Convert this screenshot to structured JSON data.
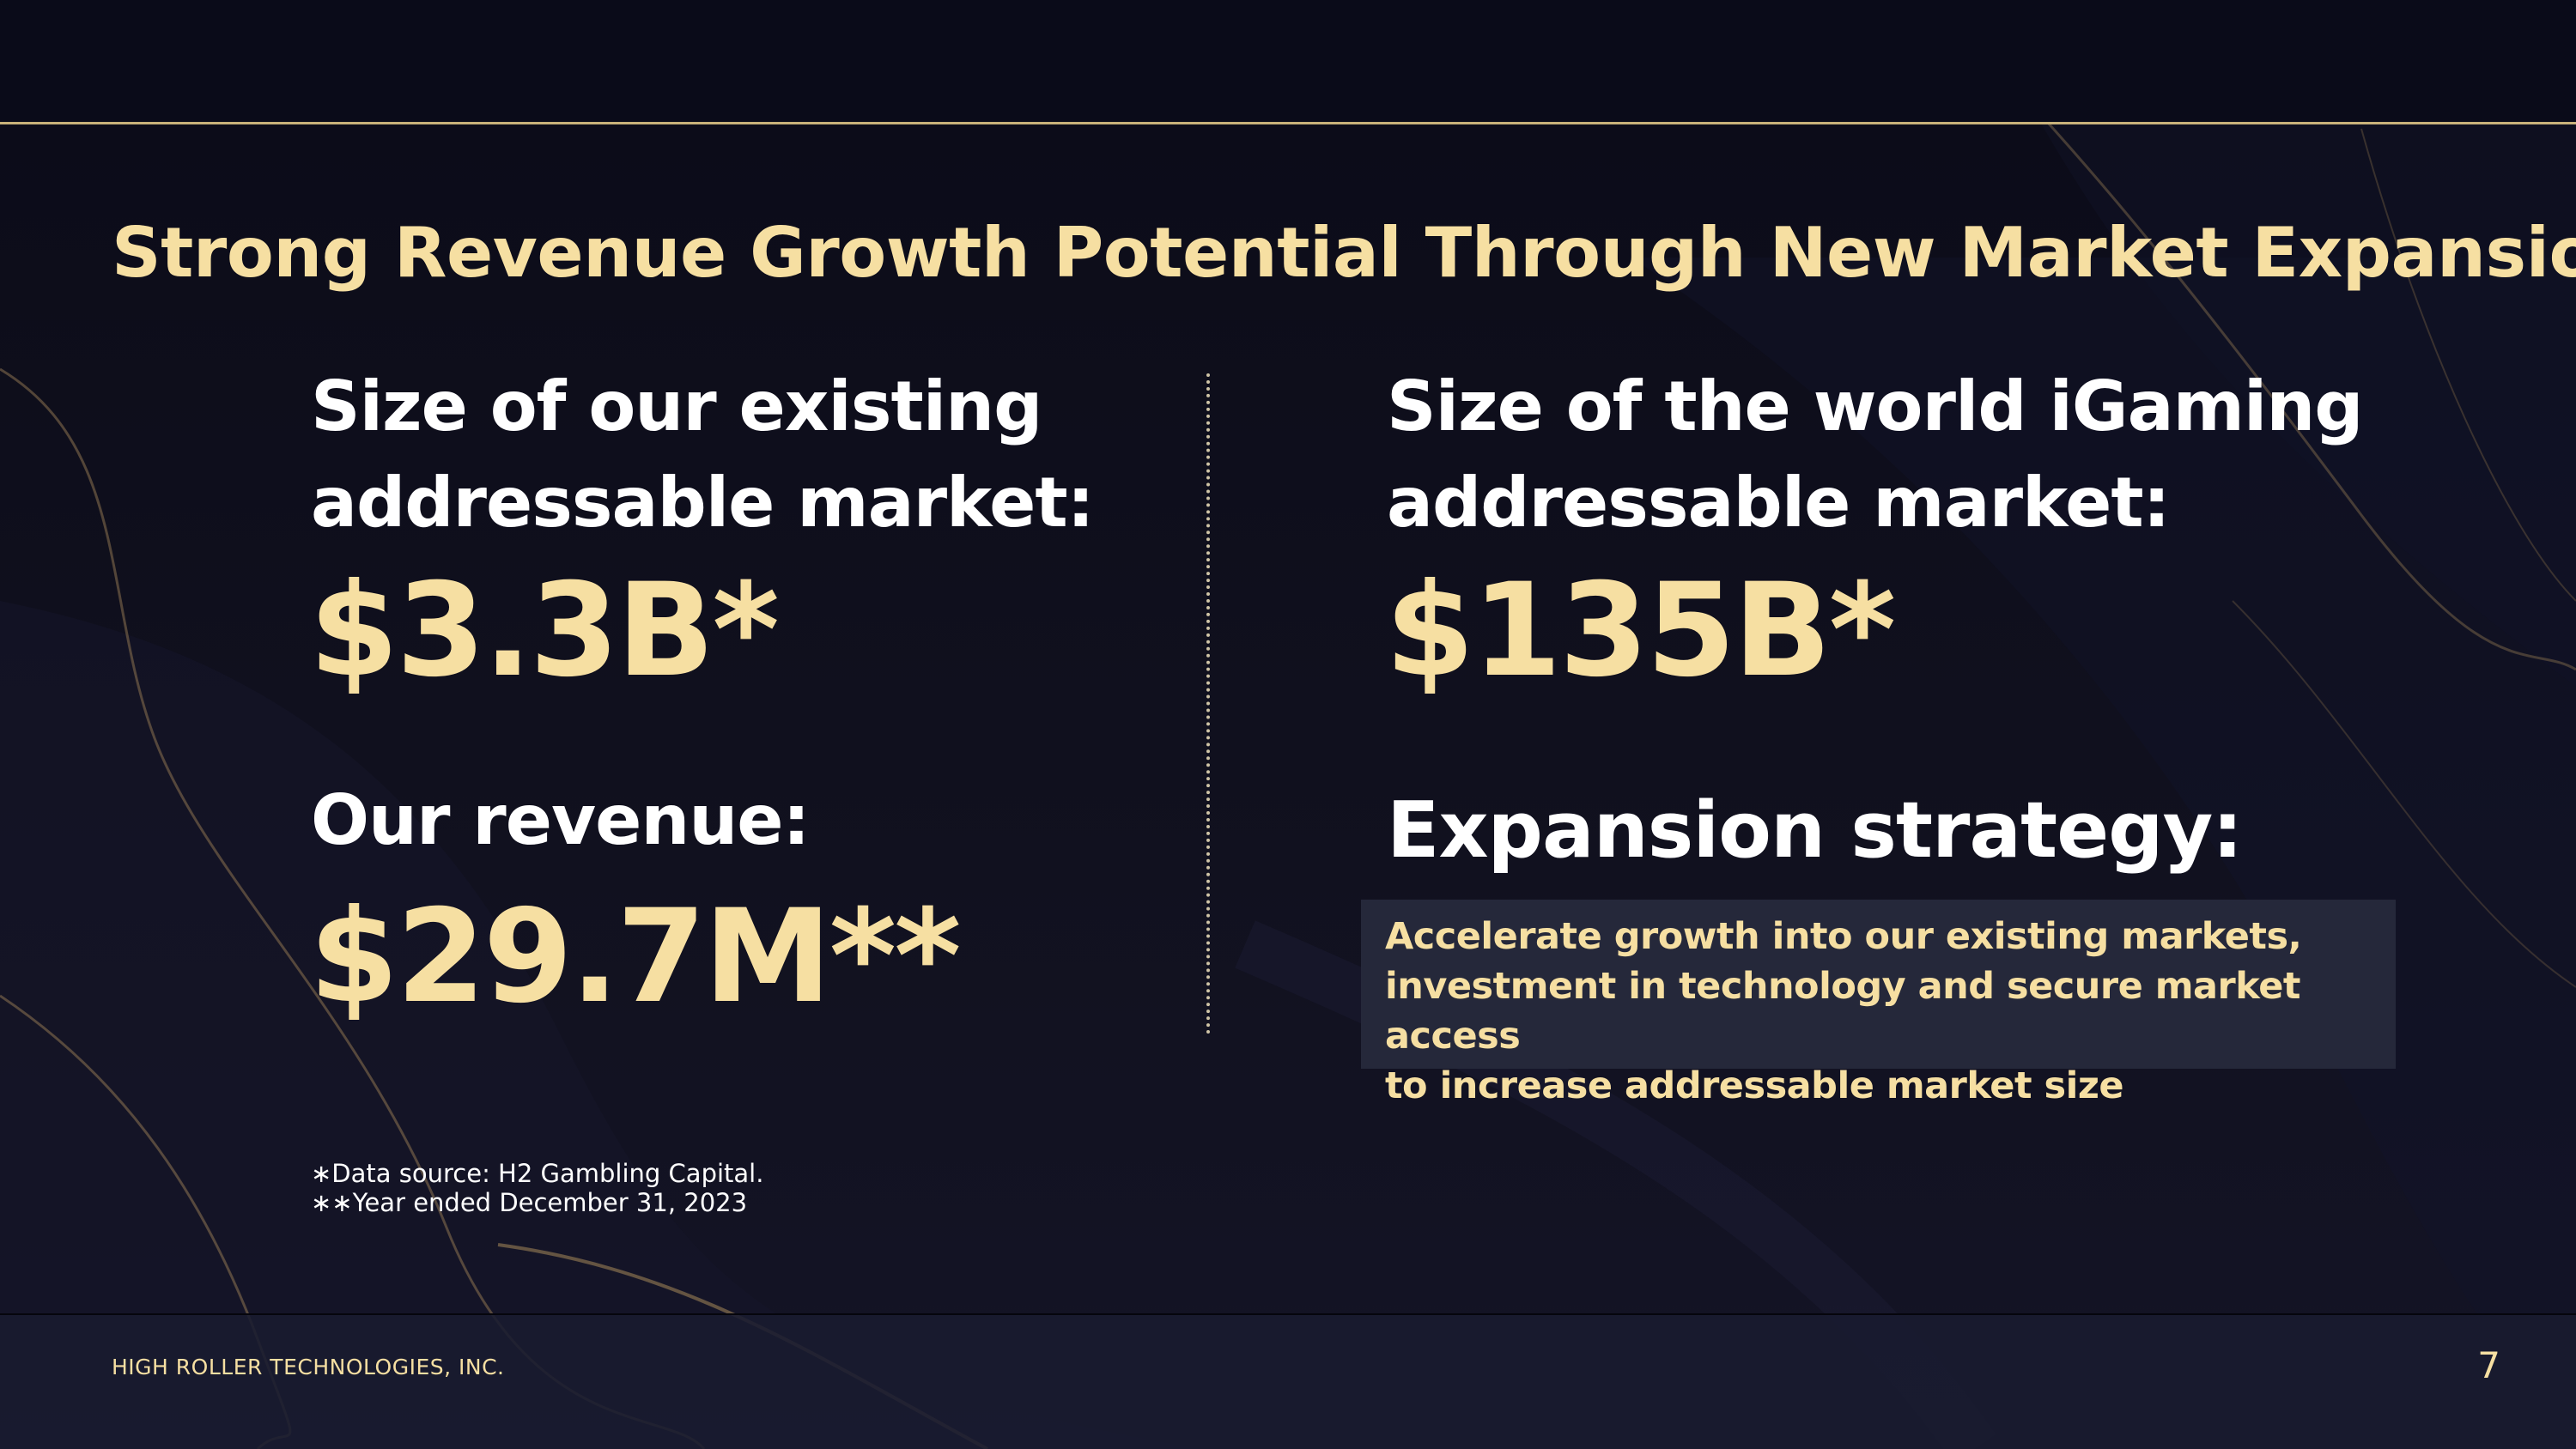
{
  "slide": {
    "title": "Strong Revenue Growth Potential Through New Market Expansion",
    "left": {
      "label_line1": "Size of our existing",
      "label_line2": "addressable market:",
      "market_value": "$3.3B*",
      "revenue_label": "Our revenue:",
      "revenue_value": "$29.7M**"
    },
    "right": {
      "label_line1": "Size of the world iGaming",
      "label_line2": "addressable market:",
      "market_value": "$135B*",
      "strategy_label": "Expansion strategy:",
      "strategy_lines": [
        "Accelerate growth into our existing markets,",
        "investment in technology and secure market access",
        "to increase addressable market size"
      ]
    },
    "footnotes": [
      "∗Data source: H2 Gambling Capital.",
      "∗∗Year ended December 31, 2023"
    ],
    "company": "HIGH ROLLER TECHNOLOGIES, INC.",
    "page_number": "7"
  },
  "colors": {
    "accent_gold": "#f6dfa2",
    "rule_gold": "#c9b27a",
    "background_navy": "#0d0d1c",
    "strategy_box": "#25283a"
  }
}
